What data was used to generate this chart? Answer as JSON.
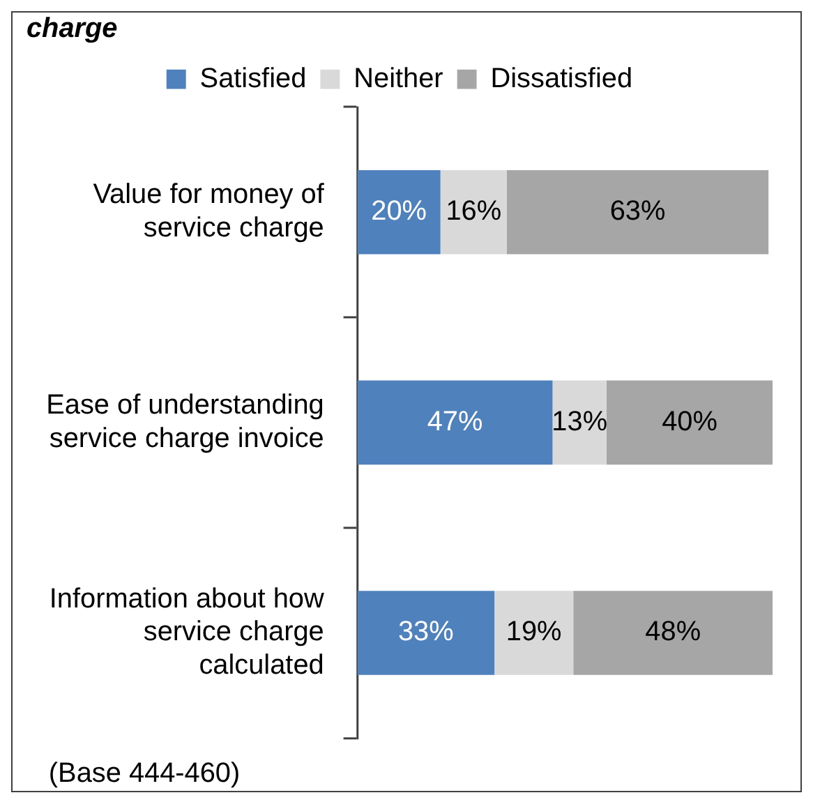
{
  "chart_data": {
    "type": "bar",
    "orientation": "horizontal",
    "stacked": true,
    "title": "charge",
    "categories": [
      "Value for money of service charge",
      "Ease of understanding service charge invoice",
      "Information about how service charge calculated"
    ],
    "series": [
      {
        "name": "Satisfied",
        "color": "#4f81bd",
        "values": [
          20,
          47,
          33
        ],
        "value_labels": [
          "20%",
          "47%",
          "33%"
        ]
      },
      {
        "name": "Neither",
        "color": "#d9d9d9",
        "values": [
          16,
          13,
          19
        ],
        "value_labels": [
          "16%",
          "13%",
          "19%"
        ]
      },
      {
        "name": "Dissatisfied",
        "color": "#a6a6a6",
        "values": [
          63,
          40,
          48
        ],
        "value_labels": [
          "63%",
          "40%",
          "48%"
        ]
      }
    ],
    "legend": "top",
    "grid": false,
    "annotations": [
      "(Base 444-460)"
    ]
  }
}
